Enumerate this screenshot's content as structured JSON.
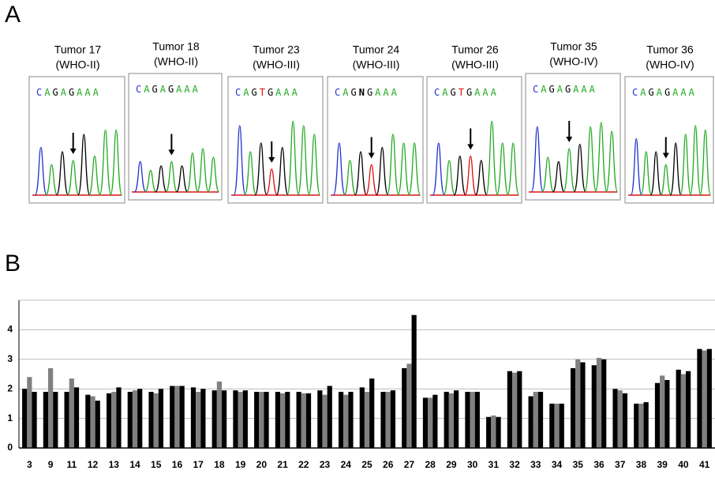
{
  "panel_labels": [
    "A",
    "B"
  ],
  "tumors": [
    {
      "title": "Tumor 17",
      "grade": "(WHO-II)",
      "sequence": "CAGAGAAA"
    },
    {
      "title": "Tumor 18",
      "grade": "(WHO-II)",
      "sequence": "CAGAGAAA"
    },
    {
      "title": "Tumor 23",
      "grade": "(WHO-III)",
      "sequence": "CAGTGAAA"
    },
    {
      "title": "Tumor 24",
      "grade": "(WHO-III)",
      "sequence": "CAGNGAAA"
    },
    {
      "title": "Tumor 26",
      "grade": "(WHO-III)",
      "sequence": "CAGTGAAA"
    },
    {
      "title": "Tumor 35",
      "grade": "(WHO-IV)",
      "sequence": "CAGAGAAA"
    },
    {
      "title": "Tumor 36",
      "grade": "(WHO-IV)",
      "sequence": "CAGAGAAA"
    }
  ],
  "chart_data": {
    "type": "bar",
    "categories": [
      "3",
      "9",
      "11",
      "12",
      "13",
      "14",
      "15",
      "16",
      "17",
      "18",
      "19",
      "20",
      "21",
      "22",
      "23",
      "24",
      "25",
      "26",
      "27",
      "28",
      "29",
      "30",
      "31",
      "32",
      "33",
      "34",
      "35",
      "36",
      "37",
      "38",
      "39",
      "40",
      "41"
    ],
    "series": [
      {
        "color": "#000000",
        "values": [
          2.0,
          1.9,
          1.9,
          1.8,
          1.85,
          1.9,
          1.9,
          2.1,
          2.05,
          1.95,
          1.95,
          1.9,
          1.9,
          1.9,
          1.95,
          1.9,
          2.05,
          1.9,
          2.7,
          1.7,
          1.9,
          1.9,
          1.05,
          2.6,
          1.75,
          1.5,
          2.7,
          2.8,
          2.0,
          1.5,
          2.2,
          2.65,
          3.35
        ]
      },
      {
        "color": "#808080",
        "values": [
          2.4,
          2.7,
          2.35,
          1.75,
          1.9,
          1.95,
          1.85,
          2.1,
          1.9,
          2.25,
          1.9,
          1.9,
          1.85,
          1.85,
          1.8,
          1.8,
          1.9,
          1.9,
          2.85,
          1.7,
          1.85,
          1.9,
          1.1,
          2.55,
          1.9,
          1.5,
          3.0,
          3.05,
          1.95,
          1.5,
          2.45,
          2.5,
          3.3
        ]
      },
      {
        "color": "#000000",
        "values": [
          1.9,
          1.9,
          2.05,
          1.6,
          2.05,
          2.0,
          2.0,
          2.1,
          2.0,
          1.95,
          1.95,
          1.9,
          1.9,
          1.85,
          2.1,
          1.9,
          2.35,
          1.95,
          4.5,
          1.8,
          1.95,
          1.9,
          1.05,
          2.6,
          1.9,
          1.5,
          2.9,
          3.0,
          1.85,
          1.55,
          2.3,
          2.6,
          3.35
        ]
      }
    ],
    "ylim": [
      0,
      5
    ],
    "yticks": [
      0,
      1,
      2,
      3,
      4
    ],
    "grid": true
  }
}
